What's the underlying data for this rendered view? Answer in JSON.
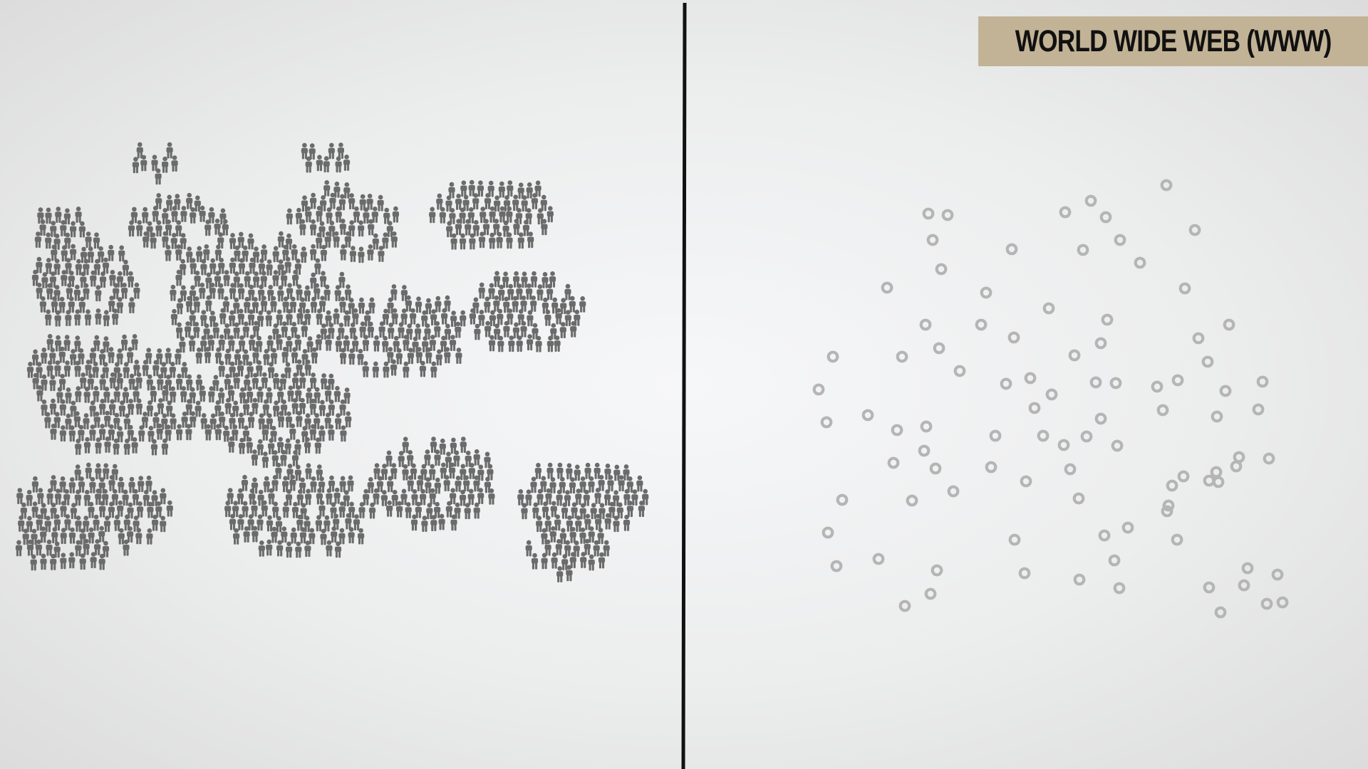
{
  "title": "WORLD WIDE WEB (WWW)",
  "colors": {
    "person": "#6b6b6b",
    "node": "#b5b5b5",
    "divider": "#111111",
    "title_background": "#c2b396"
  },
  "icons": {
    "left_panel": "person-icon",
    "right_panel": "ring-node-icon"
  }
}
